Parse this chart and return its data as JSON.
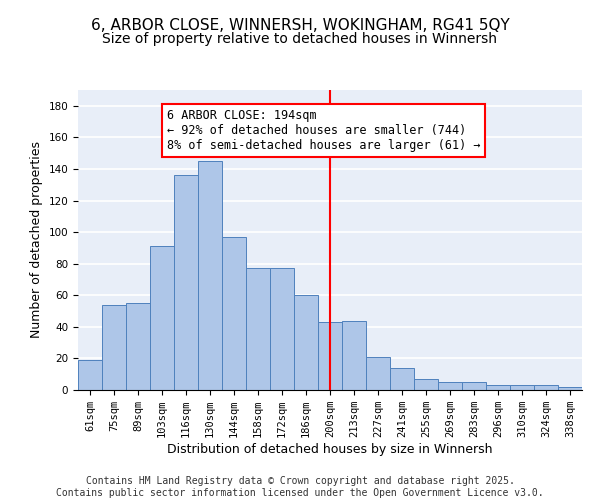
{
  "title": "6, ARBOR CLOSE, WINNERSH, WOKINGHAM, RG41 5QY",
  "subtitle": "Size of property relative to detached houses in Winnersh",
  "xlabel": "Distribution of detached houses by size in Winnersh",
  "ylabel": "Number of detached properties",
  "categories": [
    "61sqm",
    "75sqm",
    "89sqm",
    "103sqm",
    "116sqm",
    "130sqm",
    "144sqm",
    "158sqm",
    "172sqm",
    "186sqm",
    "200sqm",
    "213sqm",
    "227sqm",
    "241sqm",
    "255sqm",
    "269sqm",
    "283sqm",
    "296sqm",
    "310sqm",
    "324sqm",
    "338sqm"
  ],
  "counts": [
    19,
    54,
    55,
    91,
    136,
    145,
    97,
    77,
    77,
    60,
    43,
    44,
    21,
    14,
    7,
    5,
    5,
    3,
    3,
    3,
    2
  ],
  "bar_color": "#aec6e8",
  "bar_edge_color": "#4f81bd",
  "vline_x_index": 10,
  "vline_color": "red",
  "annotation_text": "6 ARBOR CLOSE: 194sqm\n← 92% of detached houses are smaller (744)\n8% of semi-detached houses are larger (61) →",
  "annotation_box_color": "white",
  "annotation_box_edge": "red",
  "ylim": [
    0,
    190
  ],
  "yticks": [
    0,
    20,
    40,
    60,
    80,
    100,
    120,
    140,
    160,
    180
  ],
  "background_color": "#e8eef8",
  "grid_color": "white",
  "footer_text": "Contains HM Land Registry data © Crown copyright and database right 2025.\nContains public sector information licensed under the Open Government Licence v3.0.",
  "title_fontsize": 11,
  "subtitle_fontsize": 10,
  "xlabel_fontsize": 9,
  "ylabel_fontsize": 9,
  "tick_fontsize": 7.5,
  "annotation_fontsize": 8.5,
  "footer_fontsize": 7
}
